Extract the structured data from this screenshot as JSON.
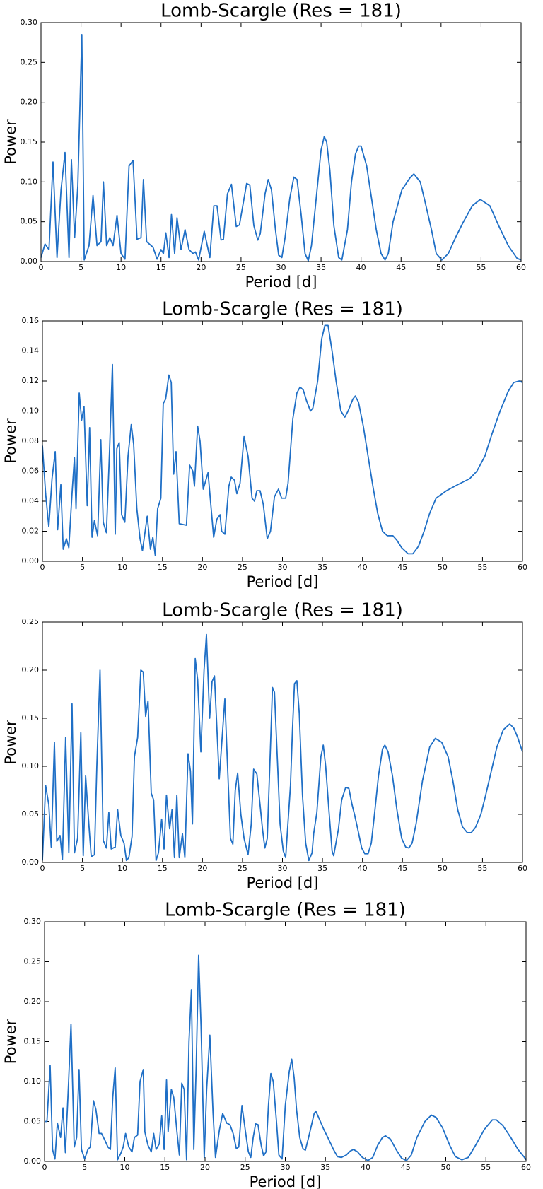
{
  "chart_data": [
    {
      "type": "line",
      "title": "Lomb-Scargle (Res = 181)",
      "x_label": "Period [d]",
      "y_label": "Power",
      "color": "#1f6fc6",
      "xlim": [
        0,
        60
      ],
      "ylim": [
        0,
        0.3
      ],
      "xticks": [
        0,
        5,
        10,
        15,
        20,
        25,
        30,
        35,
        40,
        45,
        50,
        55,
        60
      ],
      "yticks": [
        {
          "value": 0,
          "label": "0.00"
        },
        {
          "value": 0.05,
          "label": "0.05"
        },
        {
          "value": 0.1,
          "label": "0.10"
        },
        {
          "value": 0.15,
          "label": "0.15"
        },
        {
          "value": 0.2,
          "label": "0.20"
        },
        {
          "value": 0.25,
          "label": "0.25"
        },
        {
          "value": 0.3,
          "label": "0.30"
        }
      ],
      "x": [
        0,
        0.5,
        1,
        1.5,
        2,
        2.5,
        3,
        3.5,
        3.8,
        4.2,
        4.6,
        5.1,
        5.4,
        6,
        6.5,
        7,
        7.5,
        7.8,
        8.2,
        8.6,
        9,
        9.5,
        10,
        10.5,
        11,
        11.5,
        12,
        12.5,
        12.8,
        13.2,
        14,
        14.5,
        15,
        15.3,
        15.6,
        16,
        16.3,
        16.7,
        17,
        17.5,
        18,
        18.5,
        19,
        19.3,
        19.7,
        20.4,
        21.1,
        21.6,
        22.0,
        22.5,
        22.8,
        23.3,
        23.8,
        24.4,
        24.8,
        25.7,
        26.1,
        26.6,
        27.1,
        27.4,
        28.0,
        28.4,
        28.8,
        29.3,
        29.7,
        30.1,
        30.5,
        31.1,
        31.6,
        32.0,
        32.5,
        33.0,
        33.4,
        33.8,
        34.4,
        35.0,
        35.4,
        35.7,
        36.1,
        36.6,
        37.2,
        37.6,
        38.3,
        38.8,
        39.3,
        39.7,
        40.0,
        40.7,
        41.3,
        41.9,
        42.5,
        43.0,
        43.4,
        44.0,
        45.1,
        46.1,
        46.6,
        47.4,
        48.0,
        48.8,
        49.4,
        50.1,
        50.9,
        51.8,
        52.8,
        53.9,
        54.9,
        56.1,
        57.2,
        58.4,
        59.5,
        60
      ],
      "values": [
        0.005,
        0.022,
        0.015,
        0.125,
        0.005,
        0.09,
        0.137,
        0.005,
        0.128,
        0.03,
        0.095,
        0.285,
        0.002,
        0.02,
        0.083,
        0.02,
        0.025,
        0.1,
        0.02,
        0.03,
        0.02,
        0.058,
        0.01,
        0.003,
        0.12,
        0.127,
        0.028,
        0.03,
        0.103,
        0.025,
        0.018,
        0.003,
        0.015,
        0.01,
        0.036,
        0.005,
        0.059,
        0.01,
        0.055,
        0.015,
        0.04,
        0.015,
        0.01,
        0.012,
        0.002,
        0.038,
        0.005,
        0.07,
        0.07,
        0.027,
        0.028,
        0.085,
        0.097,
        0.044,
        0.046,
        0.098,
        0.096,
        0.045,
        0.027,
        0.035,
        0.085,
        0.103,
        0.09,
        0.04,
        0.008,
        0.005,
        0.03,
        0.08,
        0.106,
        0.103,
        0.06,
        0.01,
        0.001,
        0.02,
        0.08,
        0.14,
        0.157,
        0.15,
        0.115,
        0.045,
        0.005,
        0.002,
        0.04,
        0.1,
        0.135,
        0.145,
        0.145,
        0.12,
        0.08,
        0.04,
        0.01,
        0.002,
        0.01,
        0.05,
        0.09,
        0.105,
        0.11,
        0.1,
        0.075,
        0.04,
        0.01,
        0.002,
        0.01,
        0.03,
        0.05,
        0.07,
        0.078,
        0.07,
        0.045,
        0.02,
        0.004,
        0.002
      ]
    },
    {
      "type": "line",
      "title": "Lomb-Scargle (Res = 181)",
      "x_label": "Period [d]",
      "y_label": "Power",
      "color": "#1f6fc6",
      "xlim": [
        0,
        60
      ],
      "ylim": [
        0,
        0.16
      ],
      "xticks": [
        0,
        5,
        10,
        15,
        20,
        25,
        30,
        35,
        40,
        45,
        50,
        55,
        60
      ],
      "yticks": [
        {
          "value": 0,
          "label": "0.00"
        },
        {
          "value": 0.02,
          "label": "0.02"
        },
        {
          "value": 0.04,
          "label": "0.04"
        },
        {
          "value": 0.06,
          "label": "0.06"
        },
        {
          "value": 0.08,
          "label": "0.08"
        },
        {
          "value": 0.1,
          "label": "0.10"
        },
        {
          "value": 0.12,
          "label": "0.12"
        },
        {
          "value": 0.14,
          "label": "0.14"
        },
        {
          "value": 0.16,
          "label": "0.16"
        }
      ],
      "x": [
        0,
        0.4,
        0.8,
        1.2,
        1.6,
        1.9,
        2.3,
        2.6,
        3,
        3.3,
        3.7,
        4.0,
        4.2,
        4.6,
        4.9,
        5.2,
        5.6,
        5.9,
        6.2,
        6.5,
        6.9,
        7.3,
        7.6,
        8,
        8.4,
        8.75,
        9.1,
        9.3,
        9.6,
        9.9,
        10.3,
        10.7,
        11.1,
        11.4,
        11.8,
        12.2,
        12.5,
        13.1,
        13.5,
        13.8,
        14.1,
        14.4,
        14.8,
        15.1,
        15.4,
        15.8,
        16.1,
        16.4,
        16.7,
        17.1,
        18.0,
        18.4,
        18.8,
        19.0,
        19.4,
        19.7,
        20.1,
        20.7,
        21.4,
        21.8,
        22.2,
        22.4,
        22.8,
        23.3,
        23.6,
        24,
        24.3,
        24.7,
        25.2,
        25.7,
        26.2,
        26.5,
        26.8,
        27.2,
        27.6,
        28.1,
        28.5,
        29,
        29.5,
        29.9,
        30.4,
        30.7,
        31.3,
        31.8,
        32.2,
        32.6,
        33,
        33.5,
        33.8,
        34.4,
        34.9,
        35.3,
        35.7,
        36.2,
        36.7,
        37.3,
        37.8,
        38.2,
        38.8,
        39.1,
        39.5,
        40.1,
        40.7,
        41.3,
        41.9,
        42.5,
        43.1,
        43.8,
        44.3,
        44.9,
        45.7,
        46.3,
        47,
        47.7,
        48.4,
        49.2,
        50.5,
        51.9,
        53.4,
        54.3,
        55.3,
        56.2,
        57.2,
        58.2,
        58.9,
        59.6,
        60
      ],
      "values": [
        0.077,
        0.045,
        0.023,
        0.055,
        0.073,
        0.021,
        0.051,
        0.008,
        0.015,
        0.009,
        0.045,
        0.069,
        0.035,
        0.112,
        0.094,
        0.103,
        0.037,
        0.089,
        0.016,
        0.027,
        0.017,
        0.081,
        0.026,
        0.019,
        0.075,
        0.131,
        0.018,
        0.075,
        0.079,
        0.031,
        0.026,
        0.07,
        0.091,
        0.078,
        0.035,
        0.015,
        0.007,
        0.03,
        0.008,
        0.016,
        0.004,
        0.035,
        0.042,
        0.105,
        0.108,
        0.124,
        0.119,
        0.058,
        0.073,
        0.025,
        0.024,
        0.064,
        0.06,
        0.05,
        0.09,
        0.08,
        0.048,
        0.059,
        0.016,
        0.028,
        0.031,
        0.02,
        0.018,
        0.05,
        0.056,
        0.054,
        0.045,
        0.052,
        0.083,
        0.07,
        0.042,
        0.04,
        0.047,
        0.047,
        0.038,
        0.015,
        0.02,
        0.043,
        0.048,
        0.042,
        0.042,
        0.052,
        0.095,
        0.112,
        0.116,
        0.114,
        0.107,
        0.1,
        0.102,
        0.12,
        0.148,
        0.157,
        0.157,
        0.14,
        0.12,
        0.1,
        0.096,
        0.1,
        0.108,
        0.11,
        0.106,
        0.09,
        0.07,
        0.05,
        0.032,
        0.02,
        0.017,
        0.017,
        0.014,
        0.009,
        0.005,
        0.005,
        0.01,
        0.02,
        0.032,
        0.042,
        0.047,
        0.051,
        0.055,
        0.06,
        0.07,
        0.085,
        0.1,
        0.113,
        0.119,
        0.12,
        0.119
      ]
    },
    {
      "type": "line",
      "title": "Lomb-Scargle (Res = 181)",
      "x_label": "Period [d]",
      "y_label": "Power",
      "color": "#1f6fc6",
      "xlim": [
        0,
        60
      ],
      "ylim": [
        0,
        0.25
      ],
      "xticks": [
        0,
        5,
        10,
        15,
        20,
        25,
        30,
        35,
        40,
        45,
        50,
        55,
        60
      ],
      "yticks": [
        {
          "value": 0,
          "label": "0.00"
        },
        {
          "value": 0.05,
          "label": "0.05"
        },
        {
          "value": 0.1,
          "label": "0.10"
        },
        {
          "value": 0.15,
          "label": "0.15"
        },
        {
          "value": 0.2,
          "label": "0.20"
        },
        {
          "value": 0.25,
          "label": "0.25"
        }
      ],
      "x": [
        0,
        0.4,
        0.8,
        1.1,
        1.5,
        1.8,
        2.2,
        2.5,
        2.9,
        3.3,
        3.7,
        4.0,
        4.4,
        4.8,
        5.1,
        5.4,
        5.8,
        6.1,
        6.5,
        6.8,
        7.2,
        7.6,
        8,
        8.3,
        8.6,
        9.1,
        9.4,
        9.8,
        10.2,
        10.5,
        10.8,
        11.2,
        11.5,
        11.9,
        12.3,
        12.6,
        12.9,
        13.2,
        13.6,
        13.9,
        14.2,
        14.5,
        14.9,
        15.2,
        15.5,
        15.9,
        16.2,
        16.5,
        16.8,
        17.1,
        17.5,
        17.8,
        18.2,
        18.5,
        18.75,
        19.1,
        19.4,
        19.8,
        20.2,
        20.5,
        20.9,
        21.2,
        21.5,
        22.1,
        22.8,
        23.5,
        23.8,
        24.1,
        24.4,
        24.8,
        25.2,
        25.7,
        26.1,
        26.4,
        26.8,
        27.2,
        27.5,
        27.8,
        28.1,
        28.5,
        28.75,
        29.0,
        29.4,
        29.7,
        30.1,
        30.4,
        31.0,
        31.25,
        31.5,
        31.8,
        32.1,
        32.5,
        32.9,
        33.3,
        33.7,
        33.9,
        34.3,
        34.8,
        35.1,
        35.4,
        35.8,
        36.2,
        36.4,
        37.0,
        37.4,
        37.9,
        38.3,
        38.7,
        39.0,
        39.4,
        39.9,
        40.3,
        40.7,
        41.1,
        41.5,
        42.0,
        42.5,
        42.8,
        43.2,
        43.75,
        44.3,
        44.9,
        45.4,
        45.8,
        46.2,
        46.7,
        47.5,
        48.4,
        49.1,
        49.9,
        50.7,
        51.3,
        51.9,
        52.5,
        53.1,
        53.6,
        54.1,
        54.8,
        55.4,
        56.1,
        56.8,
        57.6,
        58.4,
        58.9,
        59.4,
        60
      ],
      "values": [
        0.002,
        0.08,
        0.06,
        0.016,
        0.125,
        0.022,
        0.028,
        0.003,
        0.13,
        0.01,
        0.165,
        0.01,
        0.025,
        0.135,
        0.007,
        0.09,
        0.04,
        0.006,
        0.008,
        0.1,
        0.2,
        0.023,
        0.015,
        0.052,
        0.014,
        0.016,
        0.055,
        0.028,
        0.02,
        0.002,
        0.005,
        0.027,
        0.11,
        0.13,
        0.2,
        0.198,
        0.152,
        0.168,
        0.072,
        0.065,
        0.002,
        0.01,
        0.045,
        0.014,
        0.07,
        0.035,
        0.055,
        0.005,
        0.07,
        0.005,
        0.03,
        0.005,
        0.113,
        0.095,
        0.04,
        0.212,
        0.19,
        0.115,
        0.2,
        0.237,
        0.15,
        0.188,
        0.194,
        0.087,
        0.17,
        0.025,
        0.019,
        0.075,
        0.093,
        0.05,
        0.025,
        0.008,
        0.04,
        0.097,
        0.092,
        0.06,
        0.035,
        0.015,
        0.025,
        0.12,
        0.182,
        0.177,
        0.1,
        0.04,
        0.012,
        0.005,
        0.08,
        0.138,
        0.186,
        0.189,
        0.155,
        0.07,
        0.02,
        0.002,
        0.01,
        0.03,
        0.052,
        0.11,
        0.122,
        0.1,
        0.055,
        0.012,
        0.007,
        0.035,
        0.065,
        0.078,
        0.077,
        0.06,
        0.05,
        0.035,
        0.015,
        0.009,
        0.009,
        0.02,
        0.05,
        0.09,
        0.118,
        0.122,
        0.115,
        0.09,
        0.055,
        0.025,
        0.016,
        0.015,
        0.02,
        0.04,
        0.085,
        0.12,
        0.129,
        0.125,
        0.11,
        0.085,
        0.055,
        0.037,
        0.031,
        0.031,
        0.036,
        0.05,
        0.07,
        0.095,
        0.12,
        0.138,
        0.144,
        0.14,
        0.13,
        0.115
      ]
    },
    {
      "type": "line",
      "title": "Lomb-Scargle (Res = 181)",
      "x_label": "Period [d]",
      "y_label": "Power",
      "color": "#1f6fc6",
      "xlim": [
        0,
        60
      ],
      "ylim": [
        0,
        0.3
      ],
      "xticks": [
        0,
        5,
        10,
        15,
        20,
        25,
        30,
        35,
        40,
        45,
        50,
        55,
        60
      ],
      "yticks": [
        {
          "value": 0,
          "label": "0.00"
        },
        {
          "value": 0.05,
          "label": "0.05"
        },
        {
          "value": 0.1,
          "label": "0.10"
        },
        {
          "value": 0.15,
          "label": "0.15"
        },
        {
          "value": 0.2,
          "label": "0.20"
        },
        {
          "value": 0.25,
          "label": "0.25"
        },
        {
          "value": 0.3,
          "label": "0.30"
        }
      ],
      "x": [
        0,
        0.3,
        0.7,
        1.0,
        1.3,
        1.6,
        2.0,
        2.3,
        2.6,
        3.0,
        3.3,
        3.7,
        4.0,
        4.3,
        4.6,
        5.0,
        5.4,
        5.7,
        6.1,
        6.4,
        6.8,
        7.1,
        7.5,
        7.9,
        8.2,
        8.5,
        8.8,
        9.1,
        9.5,
        9.8,
        10.1,
        10.5,
        10.9,
        11.2,
        11.6,
        11.9,
        12.3,
        12.5,
        12.9,
        13.3,
        13.6,
        13.9,
        14.3,
        14.6,
        14.9,
        15.2,
        15.4,
        15.8,
        16.1,
        16.5,
        16.8,
        17.1,
        17.4,
        17.7,
        18.0,
        18.3,
        18.6,
        18.9,
        19.2,
        19.5,
        19.9,
        20.2,
        20.6,
        21.0,
        21.3,
        21.8,
        22.2,
        22.7,
        23.1,
        23.5,
        23.9,
        24.2,
        24.6,
        25.0,
        25.4,
        25.7,
        26.0,
        26.3,
        26.6,
        27.0,
        27.3,
        27.6,
        27.9,
        28.2,
        28.5,
        28.9,
        29.2,
        29.6,
        30.0,
        30.5,
        30.8,
        31.1,
        31.4,
        31.8,
        32.2,
        32.5,
        32.9,
        33.3,
        33.6,
        33.8,
        34.2,
        34.8,
        35.3,
        36.0,
        36.5,
        37.0,
        37.6,
        38.1,
        38.5,
        39.0,
        39.6,
        40.3,
        40.9,
        41.5,
        42.1,
        42.5,
        43.1,
        43.8,
        44.5,
        45.1,
        45.7,
        46.4,
        47.4,
        48.2,
        48.8,
        49.6,
        50.5,
        51.2,
        52.0,
        52.8,
        53.7,
        54.8,
        55.8,
        56.3,
        57.1,
        58.1,
        59.0,
        59.8,
        60
      ],
      "values": [
        0.05,
        0.05,
        0.12,
        0.015,
        0.003,
        0.048,
        0.03,
        0.067,
        0.011,
        0.1,
        0.172,
        0.018,
        0.03,
        0.115,
        0.015,
        0.003,
        0.015,
        0.018,
        0.076,
        0.065,
        0.035,
        0.035,
        0.027,
        0.018,
        0.015,
        0.08,
        0.117,
        0.002,
        0.01,
        0.018,
        0.035,
        0.018,
        0.012,
        0.03,
        0.033,
        0.1,
        0.115,
        0.037,
        0.02,
        0.012,
        0.035,
        0.015,
        0.022,
        0.057,
        0.015,
        0.102,
        0.037,
        0.09,
        0.08,
        0.037,
        0.008,
        0.098,
        0.09,
        0.002,
        0.15,
        0.215,
        0.015,
        0.12,
        0.258,
        0.17,
        0.005,
        0.09,
        0.158,
        0.06,
        0.005,
        0.04,
        0.06,
        0.048,
        0.046,
        0.035,
        0.016,
        0.018,
        0.07,
        0.04,
        0.012,
        0.005,
        0.03,
        0.047,
        0.046,
        0.02,
        0.007,
        0.012,
        0.07,
        0.11,
        0.1,
        0.05,
        0.008,
        0.003,
        0.07,
        0.113,
        0.128,
        0.105,
        0.065,
        0.03,
        0.016,
        0.014,
        0.03,
        0.047,
        0.06,
        0.063,
        0.054,
        0.04,
        0.03,
        0.015,
        0.006,
        0.005,
        0.008,
        0.013,
        0.015,
        0.012,
        0.005,
        0.001,
        0.005,
        0.02,
        0.03,
        0.032,
        0.028,
        0.015,
        0.004,
        0.001,
        0.008,
        0.03,
        0.05,
        0.058,
        0.055,
        0.042,
        0.02,
        0.006,
        0.002,
        0.005,
        0.02,
        0.04,
        0.052,
        0.052,
        0.045,
        0.03,
        0.015,
        0.005,
        0.002
      ]
    }
  ]
}
